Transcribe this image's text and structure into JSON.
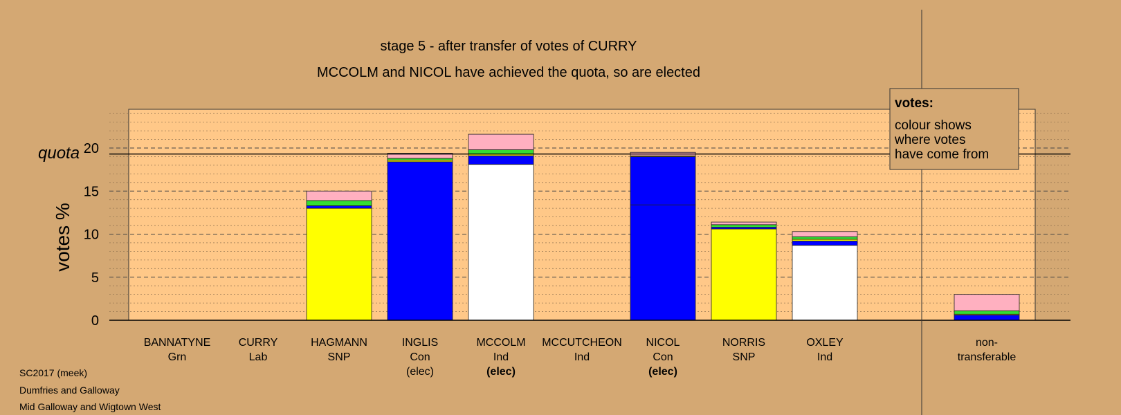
{
  "chart_data": {
    "type": "bar",
    "stacked": true,
    "title": "stage 5 - after transfer of votes of CURRY",
    "subtitle": "MCCOLM and NICOL have achieved the quota, so are elected",
    "ylabel": "votes %",
    "quota_label": "quota",
    "quota": 19.3,
    "ylim": [
      0,
      24.5
    ],
    "yticks": [
      0,
      5,
      10,
      15,
      20
    ],
    "grid": true,
    "legend": {
      "title": "votes:",
      "lines": [
        "colour shows",
        "where votes",
        "have come from"
      ],
      "placement": "top-right"
    },
    "categories": [
      {
        "name": "BANNATYNE",
        "party": "Grn",
        "status": ""
      },
      {
        "name": "CURRY",
        "party": "Lab",
        "status": ""
      },
      {
        "name": "HAGMANN",
        "party": "SNP",
        "status": ""
      },
      {
        "name": "INGLIS",
        "party": "Con",
        "status": "(elec)"
      },
      {
        "name": "MCCOLM",
        "party": "Ind",
        "status": "(elec)",
        "status_bold": true
      },
      {
        "name": "MCCUTCHEON",
        "party": "Ind",
        "status": ""
      },
      {
        "name": "NICOL",
        "party": "Con",
        "status": "(elec)",
        "status_bold": true
      },
      {
        "name": "NORRIS",
        "party": "SNP",
        "status": ""
      },
      {
        "name": "OXLEY",
        "party": "Ind",
        "status": ""
      },
      {
        "name": "non-",
        "party": "transferable",
        "status": "",
        "separate": true
      }
    ],
    "bars": [
      [],
      [],
      [
        {
          "value": 13.0,
          "color": "#FFFF00"
        },
        {
          "value": 0.3,
          "color": "#0000FF"
        },
        {
          "value": 0.6,
          "color": "#33DD33"
        },
        {
          "value": 1.1,
          "color": "#FFB0C0"
        }
      ],
      [
        {
          "value": 18.4,
          "color": "#0000FF"
        },
        {
          "value": 0.2,
          "color": "#FFFF00"
        },
        {
          "value": 0.2,
          "color": "#33DD33"
        },
        {
          "value": 0.6,
          "color": "#FFB0C0"
        }
      ],
      [
        {
          "value": 18.1,
          "color": "#FFFFFF"
        },
        {
          "value": 1.0,
          "color": "#0000FF"
        },
        {
          "value": 0.2,
          "color": "#FFFF00"
        },
        {
          "value": 0.5,
          "color": "#33DD33"
        },
        {
          "value": 1.8,
          "color": "#FFB0C0"
        }
      ],
      [],
      [
        {
          "value": 13.4,
          "color": "#0000FF"
        },
        {
          "value": 5.6,
          "color": "#0000FF"
        },
        {
          "value": 0.1,
          "color": "#FFFF00"
        },
        {
          "value": 0.4,
          "color": "#FFB0C0"
        }
      ],
      [
        {
          "value": 10.6,
          "color": "#FFFF00"
        },
        {
          "value": 0.2,
          "color": "#0000FF"
        },
        {
          "value": 0.3,
          "color": "#33DD33"
        },
        {
          "value": 0.3,
          "color": "#FFB0C0"
        }
      ],
      [
        {
          "value": 8.7,
          "color": "#FFFFFF"
        },
        {
          "value": 0.5,
          "color": "#0000FF"
        },
        {
          "value": 0.2,
          "color": "#FFFF00"
        },
        {
          "value": 0.3,
          "color": "#33DD33"
        },
        {
          "value": 0.6,
          "color": "#FFB0C0"
        }
      ],
      [
        {
          "value": 0.6,
          "color": "#0000FF"
        },
        {
          "value": 0.1,
          "color": "#FFFF00"
        },
        {
          "value": 0.4,
          "color": "#33DD33"
        },
        {
          "value": 1.9,
          "color": "#FFB0C0"
        }
      ]
    ],
    "colors": {
      "background": "#D4A873",
      "plot_background": "#FFC888"
    }
  },
  "footer": {
    "line1": "SC2017 (meek)",
    "line2": "Dumfries and Galloway",
    "line3": "Mid Galloway and Wigtown West"
  }
}
